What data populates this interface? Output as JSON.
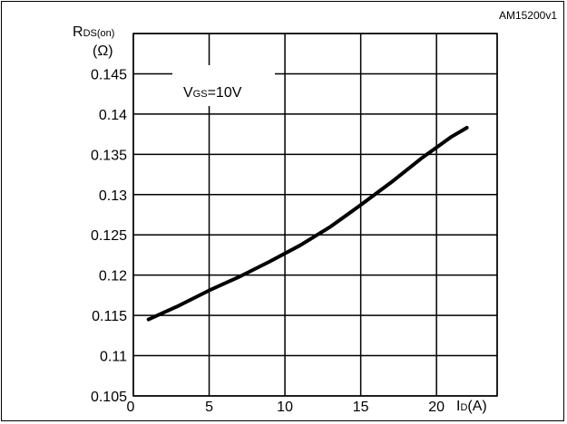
{
  "chart_data": {
    "type": "line",
    "figure_code": "AM15200v1",
    "ylabel": {
      "main": "R",
      "sub": "DS(on)",
      "unit": "(Ω)"
    },
    "xlabel": {
      "main": "I",
      "sub": "D",
      "unit": "(A)"
    },
    "annotation": {
      "main": "V",
      "sub": "GS",
      "rest": "=10V"
    },
    "xlim": [
      0,
      24
    ],
    "ylim": [
      0.105,
      0.15
    ],
    "x_ticks": [
      0,
      5,
      10,
      15,
      20
    ],
    "x_tick_labels": [
      "0",
      "5",
      "10",
      "15",
      "20"
    ],
    "y_ticks": [
      0.105,
      0.11,
      0.115,
      0.12,
      0.125,
      0.13,
      0.135,
      0.14,
      0.145
    ],
    "y_tick_labels": [
      "0.105",
      "0.11",
      "0.115",
      "0.12",
      "0.125",
      "0.13",
      "0.135",
      "0.14",
      "0.145"
    ],
    "grid": true,
    "series": [
      {
        "x": [
          1,
          3,
          5,
          7,
          9,
          11,
          13,
          15,
          17,
          19,
          21,
          22
        ],
        "y": [
          0.1145,
          0.1162,
          0.1181,
          0.1198,
          0.1217,
          0.1237,
          0.126,
          0.1287,
          0.1315,
          0.1345,
          0.1372,
          0.1383
        ]
      }
    ],
    "colors": {
      "line": "#000000",
      "grid": "#000000"
    }
  }
}
